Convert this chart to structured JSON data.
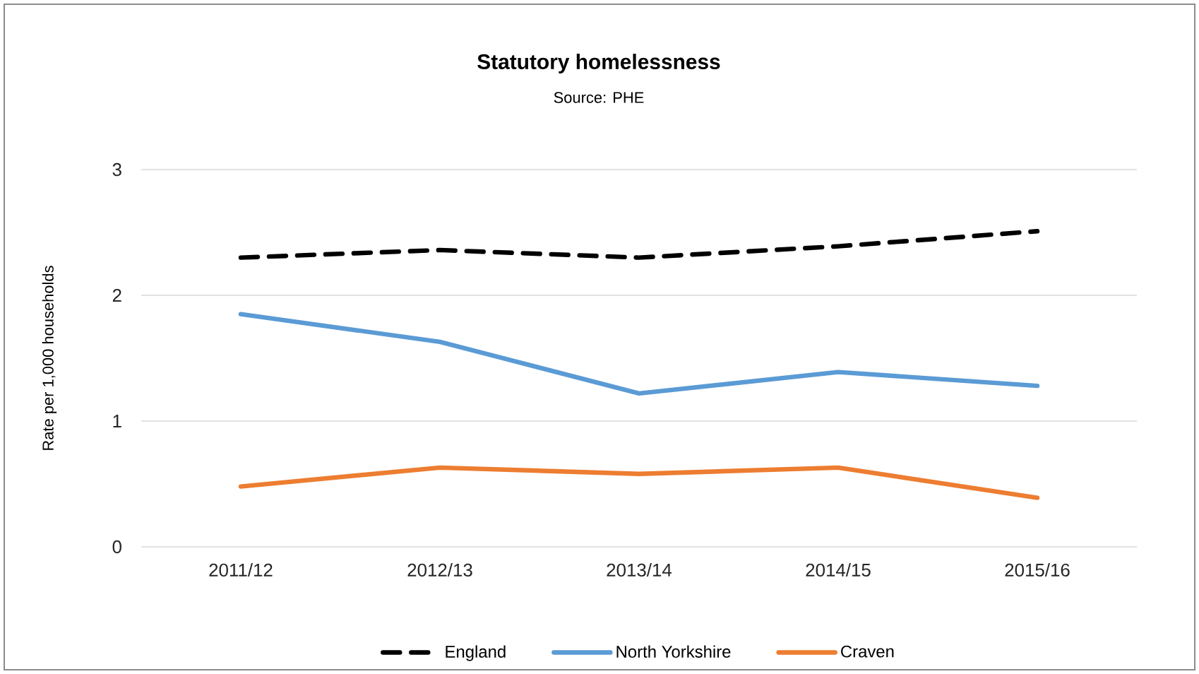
{
  "chart_data": {
    "type": "line",
    "title": "Statutory homelessness",
    "subtitle": "Source: PHE",
    "ylabel": "Rate per 1,000 households",
    "categories": [
      "2011/12",
      "2012/13",
      "2013/14",
      "2014/15",
      "2015/16"
    ],
    "series": [
      {
        "name": "England",
        "color": "#000000",
        "line_style": "dashed",
        "values": [
          2.3,
          2.36,
          2.3,
          2.39,
          2.51
        ]
      },
      {
        "name": "North Yorkshire",
        "color": "#5b9bd5",
        "values": [
          1.85,
          1.63,
          1.22,
          1.39,
          1.28
        ]
      },
      {
        "name": "Craven",
        "color": "#ed7d31",
        "values": [
          0.48,
          0.63,
          0.58,
          0.63,
          0.39
        ]
      }
    ],
    "ylim": [
      0,
      3
    ],
    "yticks": [
      0,
      1,
      2,
      3
    ],
    "grid": "y",
    "legend": "bottom",
    "marker": "none"
  }
}
